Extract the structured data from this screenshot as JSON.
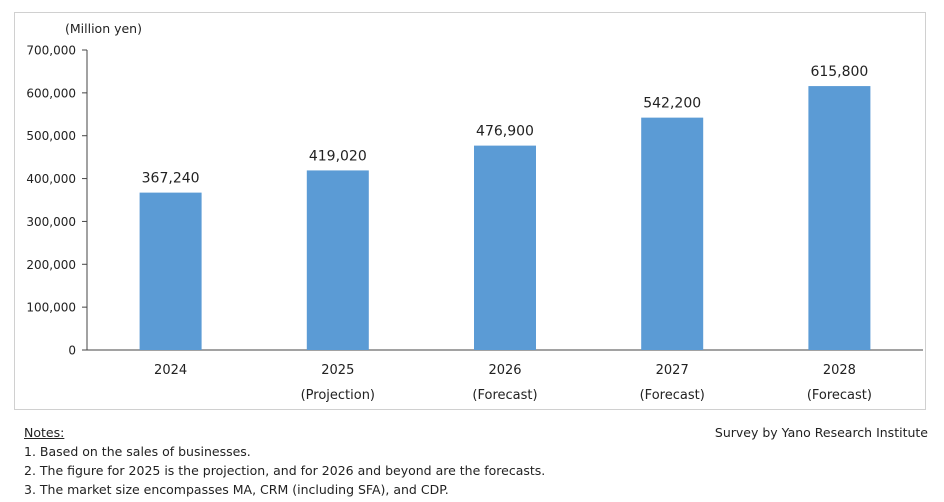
{
  "chart_data": {
    "type": "bar",
    "unit_label": "(Million  yen)",
    "categories": [
      "2024",
      "2025",
      "2026",
      "2027",
      "2028"
    ],
    "category_sublabels": [
      "",
      "(Projection)",
      "(Forecast)",
      "(Forecast)",
      "(Forecast)"
    ],
    "values": [
      367240,
      419020,
      476900,
      542200,
      615800
    ],
    "value_labels": [
      "367,240",
      "419,020",
      "476,900",
      "542,200",
      "615,800"
    ],
    "ylim": [
      0,
      700000
    ],
    "yticks": [
      0,
      100000,
      200000,
      300000,
      400000,
      500000,
      600000,
      700000
    ],
    "ytick_labels": [
      "0",
      "100,000",
      "200,000",
      "300,000",
      "400,000",
      "500,000",
      "600,000",
      "700,000"
    ],
    "grid": false,
    "bar_color": "#5b9bd5"
  },
  "notes": {
    "title": "Notes:",
    "items": [
      "1.  Based on the sales of businesses.",
      "2.  The figure for 2025 is the projection, and for 2026 and beyond are the forecasts.",
      "3.  The market size encompasses MA, CRM (including SFA), and CDP."
    ]
  },
  "source": "Survey by Yano Research Institute"
}
